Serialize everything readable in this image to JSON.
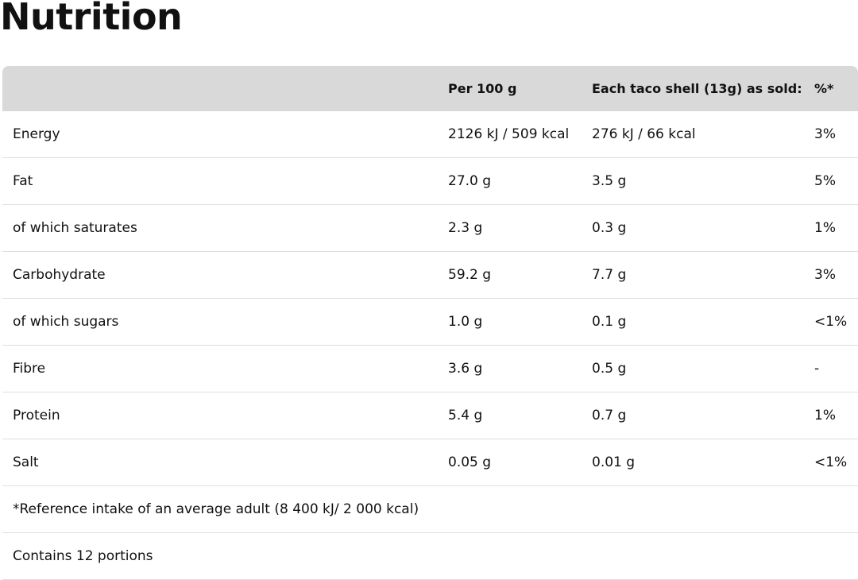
{
  "title": "Nutrition",
  "table": {
    "header": [
      "Per 100 g",
      "Each taco shell (13g) as sold:",
      "%*"
    ],
    "rows": [
      [
        "Energy",
        "2126 kJ / 509 kcal",
        "276 kJ / 66 kcal",
        "3%"
      ],
      [
        "Fat",
        "27.0 g",
        "3.5 g",
        "5%"
      ],
      [
        "of which saturates",
        "2.3 g",
        "0.3 g",
        "1%"
      ],
      [
        "Carbohydrate",
        "59.2 g",
        "7.7 g",
        "3%"
      ],
      [
        "of which sugars",
        "1.0 g",
        "0.1 g",
        "<1%"
      ],
      [
        "Fibre",
        "3.6 g",
        "0.5 g",
        "-"
      ],
      [
        "Protein",
        "5.4 g",
        "0.7 g",
        "1%"
      ],
      [
        "Salt",
        "0.05 g",
        "0.01 g",
        "<1%"
      ]
    ],
    "notes": [
      "*Reference intake of an average adult (8 400 kJ/ 2 000 kcal)",
      "Contains 12 portions"
    ]
  }
}
